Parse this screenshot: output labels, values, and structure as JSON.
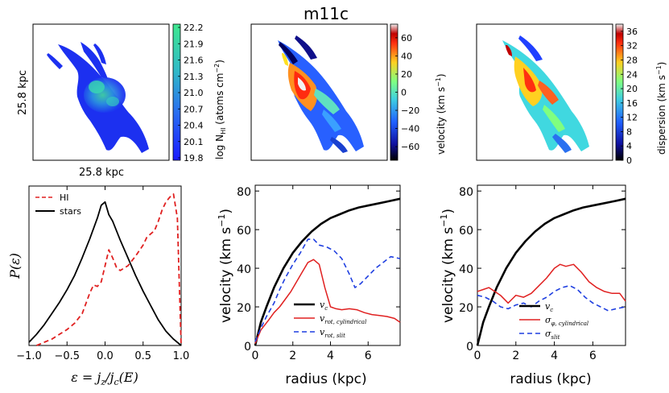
{
  "figure": {
    "title": "m11c"
  },
  "maps": {
    "hi": {
      "xlabel": "25.8 kpc",
      "ylabel": "25.8 kpc",
      "cbar_label": "log N",
      "cbar_sub": "HI",
      "cbar_unit": "(atoms cm",
      "cbar_unit_sup": "−2",
      "cbar_unit_end": ")",
      "ticks": [
        "22.2",
        "21.9",
        "21.6",
        "21.3",
        "21.0",
        "20.7",
        "20.4",
        "20.1",
        "19.8"
      ]
    },
    "velocity": {
      "cbar_label": "velocity (km s",
      "cbar_sup": "−1",
      "cbar_end": ")",
      "ticks": [
        "60",
        "40",
        "20",
        "0",
        "−20",
        "−40",
        "−60"
      ],
      "tick_values": [
        60,
        40,
        20,
        0,
        -20,
        -40,
        -60
      ],
      "range": [
        -75,
        75
      ]
    },
    "dispersion": {
      "cbar_label": "dispersion (km s",
      "cbar_sup": "−1",
      "cbar_end": ")",
      "ticks": [
        "36",
        "32",
        "28",
        "24",
        "20",
        "16",
        "12",
        "8",
        "4",
        "0"
      ],
      "tick_values": [
        36,
        32,
        28,
        24,
        20,
        16,
        12,
        8,
        4,
        0
      ],
      "range": [
        0,
        38
      ]
    }
  },
  "chart_data": [
    {
      "type": "line",
      "title": "",
      "xlabel": "ε = j_z/j_c(E)",
      "ylabel": "P(ε)",
      "xlim": [
        -1.0,
        1.0
      ],
      "xticks": [
        "−1.0",
        "−0.5",
        "0.0",
        "0.5",
        "1.0"
      ],
      "xtick_values": [
        -1.0,
        -0.5,
        0.0,
        0.5,
        1.0
      ],
      "ylim": [
        0,
        1
      ],
      "legend": "top-left",
      "series": [
        {
          "name": "HI",
          "style": "dashed",
          "color": "#e02020",
          "x": [
            -0.9,
            -0.8,
            -0.7,
            -0.6,
            -0.5,
            -0.4,
            -0.3,
            -0.2,
            -0.15,
            -0.1,
            -0.05,
            0.0,
            0.05,
            0.1,
            0.15,
            0.2,
            0.3,
            0.4,
            0.5,
            0.55,
            0.6,
            0.65,
            0.7,
            0.75,
            0.8,
            0.85,
            0.9,
            0.95,
            1.0
          ],
          "y": [
            0.0,
            0.02,
            0.04,
            0.07,
            0.1,
            0.14,
            0.2,
            0.33,
            0.38,
            0.37,
            0.4,
            0.5,
            0.6,
            0.55,
            0.49,
            0.47,
            0.5,
            0.56,
            0.63,
            0.68,
            0.7,
            0.72,
            0.78,
            0.85,
            0.9,
            0.93,
            0.95,
            0.8,
            0.0
          ]
        },
        {
          "name": "stars",
          "style": "solid",
          "color": "#000000",
          "x": [
            -1.0,
            -0.9,
            -0.8,
            -0.7,
            -0.6,
            -0.5,
            -0.4,
            -0.3,
            -0.2,
            -0.1,
            -0.05,
            0.0,
            0.05,
            0.1,
            0.2,
            0.3,
            0.4,
            0.5,
            0.6,
            0.7,
            0.8,
            0.9,
            1.0
          ],
          "y": [
            0.02,
            0.07,
            0.13,
            0.2,
            0.27,
            0.35,
            0.44,
            0.55,
            0.67,
            0.8,
            0.88,
            0.9,
            0.82,
            0.78,
            0.66,
            0.55,
            0.44,
            0.34,
            0.25,
            0.16,
            0.09,
            0.04,
            0.0
          ]
        }
      ]
    },
    {
      "type": "line",
      "title": "",
      "xlabel": "radius (kpc)",
      "ylabel": "velocity (km s⁻¹)",
      "xlim": [
        0,
        7.7
      ],
      "ylim": [
        0,
        83
      ],
      "xticks": [
        "0",
        "2",
        "4",
        "6"
      ],
      "xtick_values": [
        0,
        2,
        4,
        6
      ],
      "yticks": [
        "0",
        "20",
        "40",
        "60",
        "80"
      ],
      "ytick_values": [
        0,
        20,
        40,
        60,
        80
      ],
      "legend": "bottom-center",
      "series": [
        {
          "name": "v_c",
          "style": "solid",
          "color": "#000000",
          "width": 2.6,
          "x": [
            0,
            0.3,
            0.6,
            1.0,
            1.5,
            2.0,
            2.5,
            3.0,
            3.5,
            4.0,
            4.5,
            5.0,
            5.5,
            6.0,
            6.5,
            7.0,
            7.7
          ],
          "y": [
            0,
            12,
            20,
            30,
            40,
            48,
            54,
            59,
            63,
            66,
            68,
            70,
            71.5,
            72.5,
            73.5,
            74.5,
            76
          ]
        },
        {
          "name": "v_rot, cylindrical",
          "style": "solid",
          "color": "#e02020",
          "width": 1.5,
          "x": [
            0,
            0.3,
            0.7,
            1.0,
            1.3,
            1.6,
            1.9,
            2.2,
            2.5,
            2.8,
            3.1,
            3.4,
            3.7,
            4.0,
            4.3,
            4.6,
            5.0,
            5.4,
            5.8,
            6.2,
            6.6,
            7.0,
            7.4,
            7.7
          ],
          "y": [
            1,
            8,
            13,
            17,
            20,
            24,
            28,
            33,
            38,
            43,
            44.5,
            42,
            30,
            20,
            19,
            18.5,
            19,
            18.5,
            17,
            16,
            15.5,
            15,
            14,
            12
          ]
        },
        {
          "name": "v_rot, slit",
          "style": "dashed",
          "color": "#1f3fe0",
          "width": 1.6,
          "x": [
            0,
            0.3,
            0.6,
            1.0,
            1.3,
            1.6,
            2.0,
            2.4,
            2.8,
            3.1,
            3.4,
            3.8,
            4.2,
            4.6,
            5.0,
            5.3,
            5.6,
            6.0,
            6.4,
            6.8,
            7.2,
            7.7
          ],
          "y": [
            2,
            9,
            15,
            22,
            29,
            35,
            42,
            48,
            55,
            55,
            52,
            51,
            49,
            45,
            37,
            30,
            32,
            36,
            40,
            43,
            46,
            45
          ]
        }
      ],
      "legend_labels": [
        "v",
        "v",
        "v"
      ],
      "legend_subs": [
        "c",
        "rot, cylindrical",
        "rot, slit"
      ]
    },
    {
      "type": "line",
      "title": "",
      "xlabel": "radius (kpc)",
      "ylabel": "velocity (km s⁻¹)",
      "xlim": [
        0,
        7.7
      ],
      "ylim": [
        0,
        83
      ],
      "xticks": [
        "0",
        "2",
        "4",
        "6"
      ],
      "xtick_values": [
        0,
        2,
        4,
        6
      ],
      "yticks": [
        "0",
        "20",
        "40",
        "60",
        "80"
      ],
      "ytick_values": [
        0,
        20,
        40,
        60,
        80
      ],
      "legend": "bottom-center",
      "series": [
        {
          "name": "v_c",
          "style": "solid",
          "color": "#000000",
          "width": 2.6,
          "x": [
            0,
            0.3,
            0.6,
            1.0,
            1.5,
            2.0,
            2.5,
            3.0,
            3.5,
            4.0,
            4.5,
            5.0,
            5.5,
            6.0,
            6.5,
            7.0,
            7.7
          ],
          "y": [
            0,
            12,
            20,
            30,
            40,
            48,
            54,
            59,
            63,
            66,
            68,
            70,
            71.5,
            72.5,
            73.5,
            74.5,
            76
          ]
        },
        {
          "name": "σ_φ, cylindrical",
          "style": "solid",
          "color": "#e02020",
          "width": 1.5,
          "x": [
            0,
            0.3,
            0.6,
            0.9,
            1.2,
            1.6,
            2.0,
            2.4,
            2.8,
            3.2,
            3.6,
            4.0,
            4.3,
            4.6,
            5.0,
            5.4,
            5.8,
            6.2,
            6.6,
            7.0,
            7.4,
            7.7
          ],
          "y": [
            28,
            29,
            30,
            28,
            26,
            22,
            26,
            25,
            27,
            31,
            35,
            40,
            42,
            41,
            42,
            38,
            33,
            30,
            28,
            27,
            27,
            23
          ]
        },
        {
          "name": "σ_slit",
          "style": "dashed",
          "color": "#1f3fe0",
          "width": 1.6,
          "x": [
            0,
            0.4,
            0.8,
            1.2,
            1.6,
            2.0,
            2.4,
            2.8,
            3.2,
            3.6,
            4.0,
            4.4,
            4.8,
            5.2,
            5.6,
            6.0,
            6.4,
            6.8,
            7.2,
            7.7
          ],
          "y": [
            26,
            25,
            23,
            20,
            19,
            21,
            22,
            20,
            23,
            25,
            28,
            30,
            31,
            29,
            25,
            22,
            20,
            18,
            19,
            20
          ]
        }
      ],
      "legend_labels": [
        "v",
        "σ",
        "σ"
      ],
      "legend_subs": [
        "c",
        "φ, cylindrical",
        "slit"
      ]
    }
  ],
  "legend_top": {
    "hi": "HI",
    "stars": "stars"
  }
}
